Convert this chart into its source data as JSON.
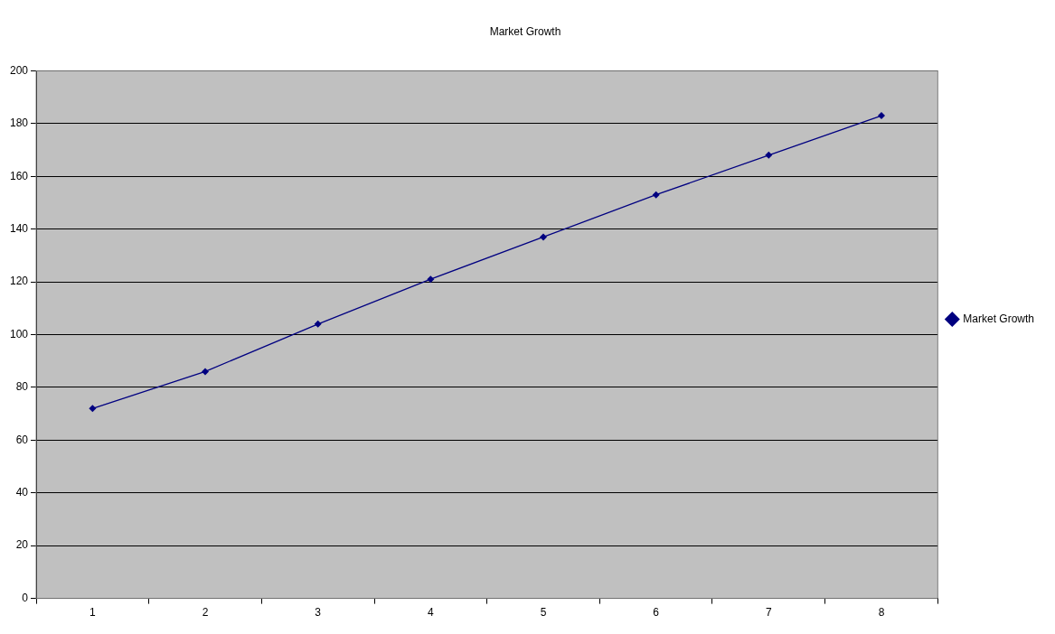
{
  "chart_data": {
    "type": "line",
    "title": "Market Growth",
    "categories": [
      "1",
      "2",
      "3",
      "4",
      "5",
      "6",
      "7",
      "8"
    ],
    "series": [
      {
        "name": "Market Growth",
        "color": "#000080",
        "values": [
          72,
          86,
          104,
          121,
          137,
          153,
          168,
          183
        ]
      }
    ],
    "ylim": [
      0,
      200
    ],
    "yticks": [
      0,
      20,
      40,
      60,
      80,
      100,
      120,
      140,
      160,
      180,
      200
    ],
    "grid": "y",
    "legend": "right",
    "marker": "diamond",
    "line_style": "solid"
  }
}
